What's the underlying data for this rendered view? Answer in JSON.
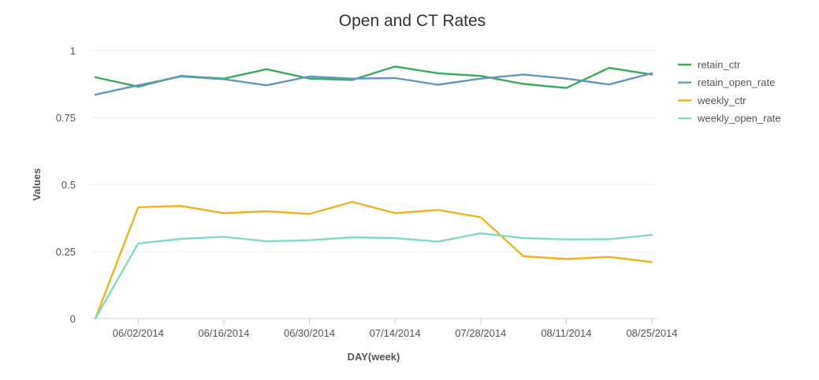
{
  "chart_data": {
    "type": "line",
    "title": "Open and CT Rates",
    "xlabel": "DAY(week)",
    "ylabel": "Values",
    "ylim": [
      0,
      1
    ],
    "yticks": [
      0,
      0.25,
      0.5,
      0.75,
      1
    ],
    "ytick_labels": [
      "0",
      "0.25",
      "0.5",
      "0.75",
      "1"
    ],
    "x": [
      "05/26/2014",
      "06/02/2014",
      "06/09/2014",
      "06/16/2014",
      "06/23/2014",
      "06/30/2014",
      "07/07/2014",
      "07/14/2014",
      "07/21/2014",
      "07/28/2014",
      "08/04/2014",
      "08/11/2014",
      "08/18/2014",
      "08/25/2014"
    ],
    "xtick_labels": [
      "06/02/2014",
      "06/16/2014",
      "06/30/2014",
      "07/14/2014",
      "07/28/2014",
      "08/11/2014",
      "08/25/2014"
    ],
    "grid": true,
    "legend_position": "right",
    "series": [
      {
        "name": "retain_ctr",
        "color": "#3aaa5e",
        "values": [
          0.9,
          0.865,
          0.905,
          0.895,
          0.93,
          0.895,
          0.89,
          0.94,
          0.915,
          0.905,
          0.875,
          0.86,
          0.935,
          0.91
        ]
      },
      {
        "name": "retain_open_rate",
        "color": "#6396c0",
        "values": [
          0.835,
          0.87,
          0.903,
          0.893,
          0.87,
          0.903,
          0.895,
          0.897,
          0.872,
          0.895,
          0.91,
          0.895,
          0.873,
          0.915
        ]
      },
      {
        "name": "weekly_ctr",
        "color": "#edb41e",
        "values": [
          0.0,
          0.415,
          0.42,
          0.393,
          0.4,
          0.39,
          0.435,
          0.393,
          0.405,
          0.378,
          0.232,
          0.222,
          0.23,
          0.21
        ]
      },
      {
        "name": "weekly_open_rate",
        "color": "#86d8c6",
        "values": [
          0.0,
          0.28,
          0.297,
          0.305,
          0.288,
          0.292,
          0.303,
          0.3,
          0.287,
          0.318,
          0.3,
          0.295,
          0.296,
          0.312
        ]
      }
    ]
  }
}
